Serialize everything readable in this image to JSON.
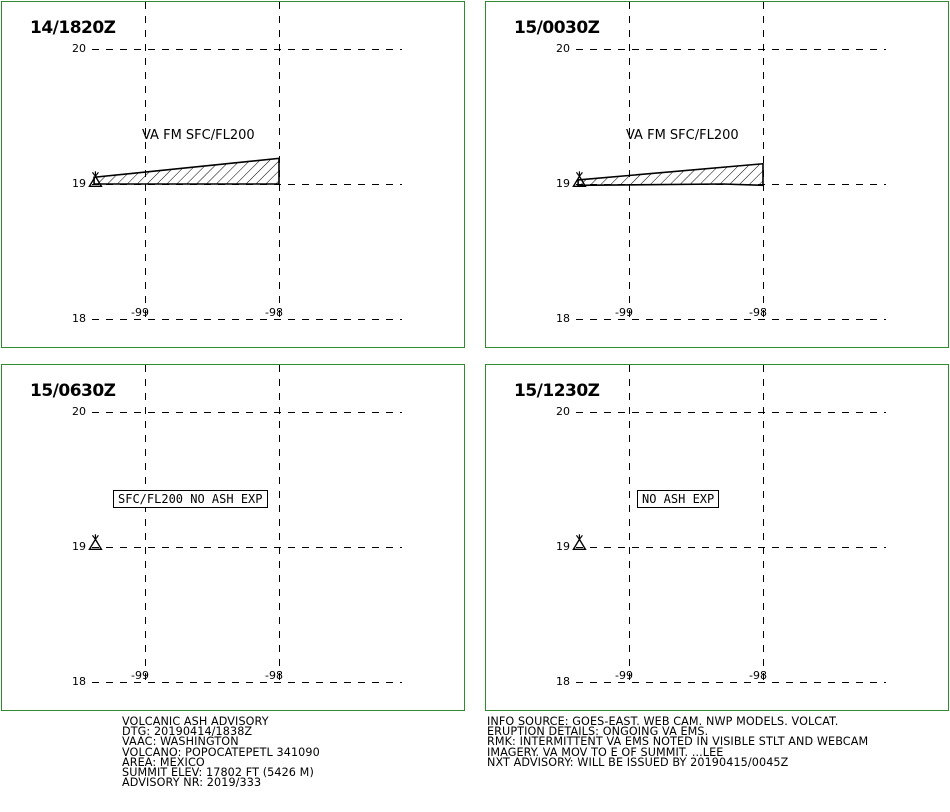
{
  "panels": [
    {
      "title": "14/1820Z",
      "label": "VA FM SFC/FL200",
      "label_boxed": false,
      "has_polygon": true,
      "polygon": [
        [
          -99.38,
          19.05
        ],
        [
          -98.0,
          19.19
        ],
        [
          -98.0,
          19.0
        ],
        [
          -99.38,
          19.0
        ]
      ]
    },
    {
      "title": "15/0030Z",
      "label": "VA FM SFC/FL200",
      "label_boxed": false,
      "has_polygon": true,
      "polygon": [
        [
          -99.38,
          19.03
        ],
        [
          -98.0,
          19.15
        ],
        [
          -98.0,
          18.99
        ],
        [
          -98.3,
          19.0
        ],
        [
          -99.38,
          18.99
        ]
      ]
    },
    {
      "title": "15/0630Z",
      "label": "SFC/FL200 NO ASH EXP",
      "label_boxed": true,
      "has_polygon": false
    },
    {
      "title": "15/1230Z",
      "label": "NO ASH EXP",
      "label_boxed": true,
      "has_polygon": false
    }
  ],
  "grid": {
    "lat_labels": [
      "20",
      "19",
      "18"
    ],
    "lon_labels": [
      "-99",
      "-98"
    ],
    "lat_values": [
      20,
      19,
      18
    ],
    "lon_values": [
      -99,
      -98
    ]
  },
  "volcano": {
    "lat": 19.02,
    "lon": -99.37,
    "icon": "volcano-icon"
  },
  "footer": {
    "left": [
      "VOLCANIC ASH ADVISORY",
      "DTG: 20190414/1838Z",
      "VAAC: WASHINGTON",
      "VOLCANO: POPOCATEPETL 341090",
      "AREA: MEXICO",
      "SUMMIT ELEV: 17802 FT (5426 M)",
      "ADVISORY NR: 2019/333"
    ],
    "right": [
      "INFO SOURCE: GOES-EAST. WEB CAM. NWP MODELS. VOLCAT.",
      "ERUPTION DETAILS: ONGOING VA EMS.",
      "RMK: INTERMITTENT VA EMS NOTED IN VISIBLE STLT AND WEBCAM",
      "IMAGERY. VA MOV TO E OF SUMMIT.  ...LEE",
      "NXT ADVISORY: WILL BE ISSUED BY 20190415/0045Z"
    ]
  },
  "colors": {
    "panel_border": "#2e8b2e",
    "lines": "#000000"
  }
}
